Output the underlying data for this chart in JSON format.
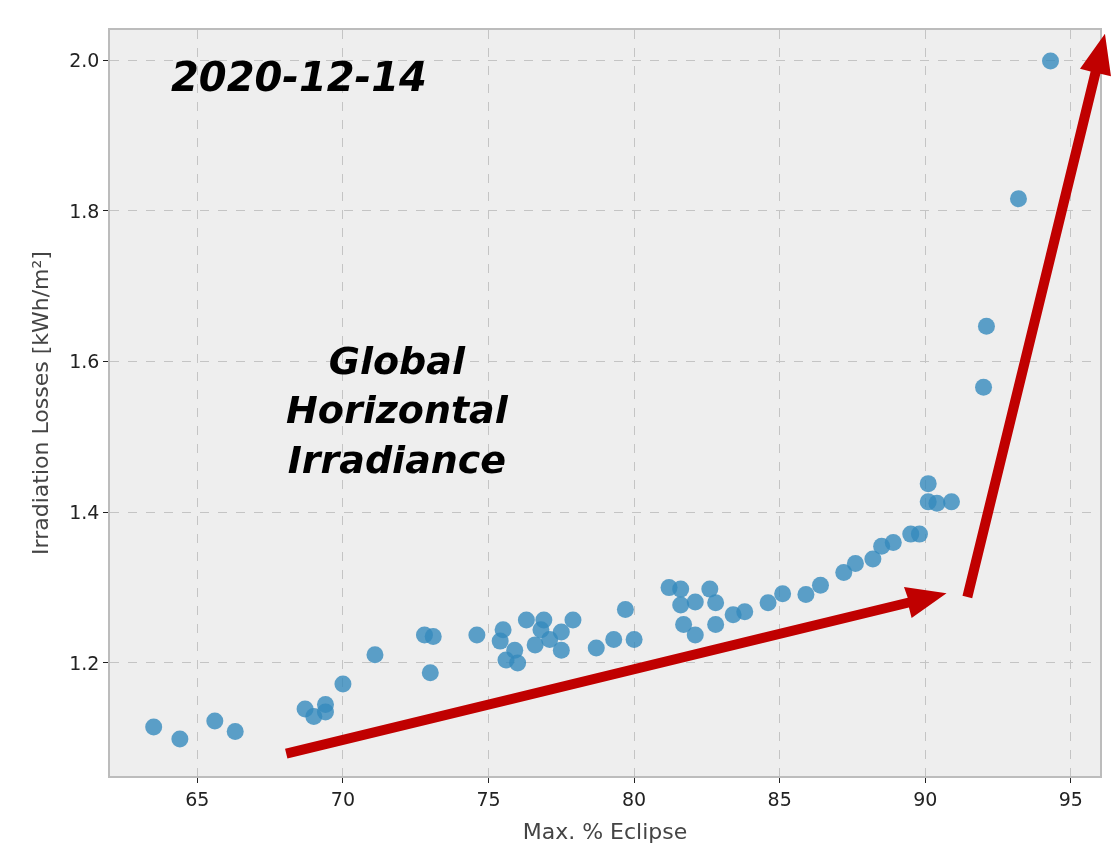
{
  "chart_data": {
    "type": "scatter",
    "title": "2020-12-14",
    "xlabel": "Max. % Eclipse",
    "ylabel": "Irradiation Losses [kWh/m²]",
    "annotations": [
      "Global Horizontal Irradiance"
    ],
    "xlim": [
      62,
      96
    ],
    "xticks": [
      65,
      70,
      75,
      80,
      85,
      90,
      95
    ],
    "ylim": [
      1.05,
      2.04
    ],
    "yticks": [
      {
        "value": 1.2,
        "label": "1.2"
      },
      {
        "value": 1.4,
        "label": "1.4"
      },
      {
        "value": 1.6,
        "label": "1.6"
      },
      {
        "value": 1.8,
        "label": "1.8"
      },
      {
        "value": 2.0,
        "label": "2.0"
      }
    ],
    "grid": true,
    "marker": "circle",
    "series": [
      {
        "color": "#348abd",
        "x": [
          63.5,
          64.4,
          65.6,
          66.3,
          68.7,
          69.0,
          69.4,
          69.4,
          70.0,
          71.1,
          72.8,
          73.1,
          73.0,
          74.6,
          75.5,
          75.4,
          75.6,
          76.0,
          75.9,
          76.3,
          76.8,
          76.9,
          76.6,
          77.1,
          77.5,
          77.5,
          77.9,
          78.7,
          79.3,
          79.7,
          80.0,
          81.2,
          81.6,
          81.6,
          82.1,
          82.6,
          82.8,
          81.7,
          82.1,
          82.8,
          83.4,
          83.8,
          84.6,
          85.1,
          85.9,
          86.4,
          87.2,
          87.6,
          88.2,
          88.5,
          88.9,
          89.5,
          89.8,
          90.1,
          90.1,
          90.4,
          90.9,
          92.0,
          92.1,
          93.2,
          94.3
        ],
        "values": [
          1.115,
          1.099,
          1.123,
          1.109,
          1.139,
          1.129,
          1.145,
          1.135,
          1.172,
          1.211,
          1.237,
          1.235,
          1.187,
          1.237,
          1.244,
          1.229,
          1.204,
          1.2,
          1.217,
          1.257,
          1.244,
          1.257,
          1.224,
          1.231,
          1.241,
          1.217,
          1.257,
          1.22,
          1.231,
          1.271,
          1.231,
          1.3,
          1.298,
          1.277,
          1.281,
          1.298,
          1.28,
          1.251,
          1.237,
          1.251,
          1.264,
          1.268,
          1.28,
          1.292,
          1.291,
          1.303,
          1.32,
          1.332,
          1.338,
          1.355,
          1.36,
          1.371,
          1.371,
          1.438,
          1.414,
          1.412,
          1.414,
          1.566,
          1.647,
          1.816,
          1.999
        ]
      }
    ]
  }
}
